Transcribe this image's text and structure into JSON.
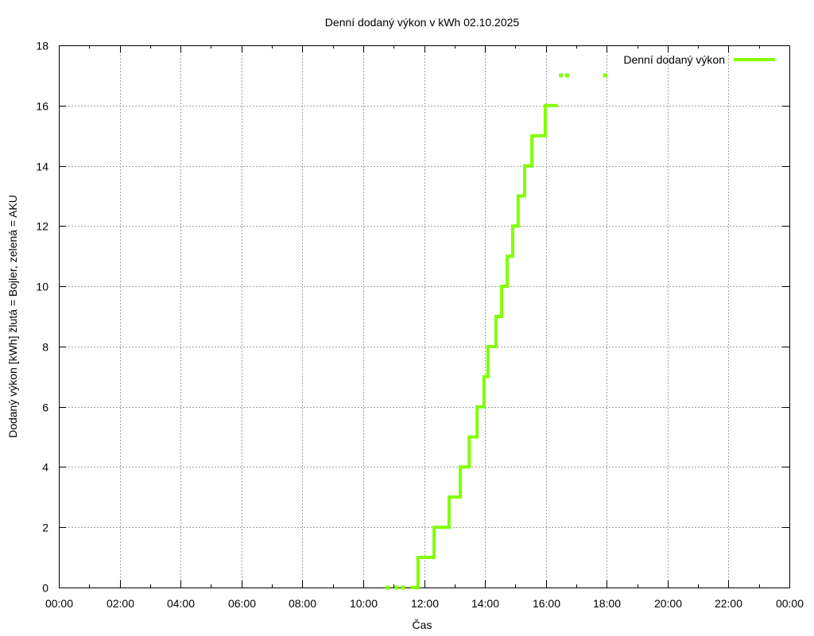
{
  "chart_data": {
    "type": "line",
    "title": "Denní dodaný výkon v kWh 02.10.2025",
    "xlabel": "Čas",
    "ylabel": "Dodaný výkon [kWh]  žlutá = Bojler, zelená = AKU",
    "xlim": [
      0,
      24
    ],
    "ylim": [
      0,
      18
    ],
    "grid": true,
    "legend_position": "top-right",
    "x_ticks": [
      "00:00",
      "02:00",
      "04:00",
      "06:00",
      "08:00",
      "10:00",
      "12:00",
      "14:00",
      "16:00",
      "18:00",
      "20:00",
      "22:00",
      "00:00"
    ],
    "y_ticks": [
      "0",
      "2",
      "4",
      "6",
      "8",
      "10",
      "12",
      "14",
      "16",
      "18"
    ],
    "series": [
      {
        "name": "Denní dodaný výkon",
        "color": "#80ff00",
        "style": "step",
        "x_hours": [
          11.55,
          11.8,
          11.8,
          12.33,
          12.33,
          12.82,
          12.82,
          13.19,
          13.19,
          13.48,
          13.48,
          13.74,
          13.74,
          13.97,
          13.97,
          14.1,
          14.1,
          14.36,
          14.36,
          14.55,
          14.55,
          14.73,
          14.73,
          14.91,
          14.91,
          15.09,
          15.09,
          15.3,
          15.3,
          15.54,
          15.54,
          15.98,
          15.98,
          16.4
        ],
        "values": [
          0,
          0,
          1,
          1,
          2,
          2,
          3,
          3,
          4,
          4,
          5,
          5,
          6,
          6,
          7,
          7,
          8,
          8,
          9,
          9,
          10,
          10,
          11,
          11,
          12,
          12,
          13,
          13,
          14,
          14,
          15,
          15,
          16,
          16
        ]
      }
    ],
    "sparse_points": [
      {
        "x_hours": 10.8,
        "value": 0
      },
      {
        "x_hours": 11.1,
        "value": 0
      },
      {
        "x_hours": 11.3,
        "value": 0
      },
      {
        "x_hours": 16.5,
        "value": 17
      },
      {
        "x_hours": 16.7,
        "value": 17
      },
      {
        "x_hours": 17.95,
        "value": 17
      }
    ]
  },
  "colors": {
    "series": "#80ff00",
    "grid": "#a0a0a0",
    "axis": "#000000"
  }
}
